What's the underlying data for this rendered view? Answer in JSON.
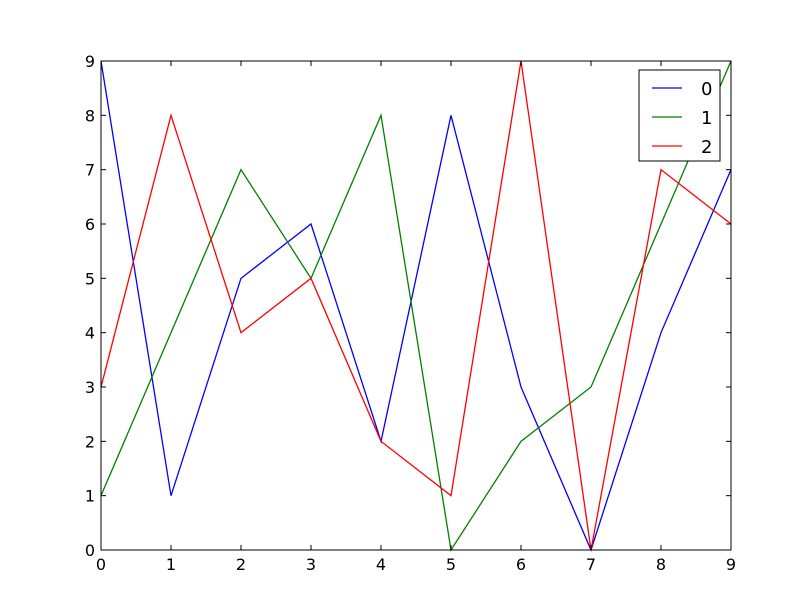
{
  "chart_data": {
    "type": "line",
    "x": [
      0,
      1,
      2,
      3,
      4,
      5,
      6,
      7,
      8,
      9
    ],
    "series": [
      {
        "name": "0",
        "color": "#0000ff",
        "values": [
          9,
          1,
          5,
          6,
          2,
          8,
          3,
          0,
          4,
          7
        ]
      },
      {
        "name": "1",
        "color": "#008000",
        "values": [
          1,
          4,
          7,
          5,
          8,
          0,
          2,
          3,
          6,
          9
        ]
      },
      {
        "name": "2",
        "color": "#ff0000",
        "values": [
          3,
          8,
          4,
          5,
          2,
          1,
          9,
          0,
          7,
          6
        ]
      }
    ],
    "xlim": [
      0,
      9
    ],
    "ylim": [
      0,
      9
    ],
    "xticks": [
      "0",
      "1",
      "2",
      "3",
      "4",
      "5",
      "6",
      "7",
      "8",
      "9"
    ],
    "yticks": [
      "0",
      "1",
      "2",
      "3",
      "4",
      "5",
      "6",
      "7",
      "8",
      "9"
    ],
    "grid": false,
    "legend_position": "top-right"
  }
}
